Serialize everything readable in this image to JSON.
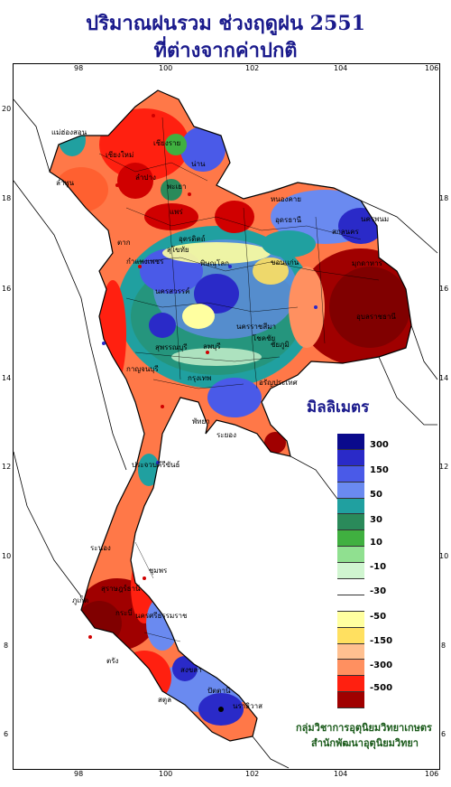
{
  "title": {
    "line1": "ปริมาณฝนรวม ช่วงฤดูฝน 2551",
    "line2": "ที่ต่างจากค่าปกติ"
  },
  "legend": {
    "title": "มิลลิเมตร",
    "labels": [
      "300",
      "150",
      "50",
      "30",
      "10",
      "-10",
      "-30",
      "-50",
      "-150",
      "-300",
      "-500"
    ],
    "colors": [
      "#0a0a8c",
      "#2a2ac8",
      "#4a5ae8",
      "#6a8af0",
      "#20a0a0",
      "#2a8a5a",
      "#40b040",
      "#90e090",
      "#d0f5d0",
      "#ffffff",
      "#ffffff",
      "#ffffa0",
      "#ffe060",
      "#ffc090",
      "#ff9060",
      "#ff6030",
      "#ff2010",
      "#d00000",
      "#a00000",
      "#800000"
    ]
  },
  "axes": {
    "top": [
      "98",
      "100",
      "102",
      "104",
      "106"
    ],
    "bottom": [
      "98",
      "100",
      "102",
      "104",
      "106"
    ],
    "left": [
      "20",
      "18",
      "16",
      "14",
      "12",
      "10",
      "8",
      "6"
    ],
    "right": [
      "18",
      "16",
      "14",
      "12",
      "10",
      "8",
      "6"
    ]
  },
  "places": [
    "แม่ฮ่องสอน",
    "เชียงใหม่",
    "ลำพูน",
    "เชียงราย",
    "พะเยา",
    "น่าน",
    "ลำปาง",
    "แพร่",
    "อุตรดิตถ์",
    "ตาก",
    "สุโขทัย",
    "กำแพงเพชร",
    "พิษณุโลก",
    "นครสวรรค์",
    "หนองคาย",
    "อุดรธานี",
    "สกลนคร",
    "นครพนม",
    "ขอนแก่น",
    "มุกดาหาร",
    "อุบลราชธานี",
    "นครราชสีมา",
    "โชคชัย",
    "ชัยภูมิ",
    "กาญจนบุรี",
    "สุพรรณบุรี",
    "ลพบุรี",
    "กรุงเทพ",
    "อรัญประเทศ",
    "พัทยา",
    "ระยอง",
    "ประจวบคีรีขันธ์",
    "ระนอง",
    "ชุมพร",
    "สุราษฎร์ธานี",
    "นครศรีธรรมราช",
    "ภูเก็ต",
    "กระบี่",
    "ตรัง",
    "สงขลา",
    "ปัตตานี",
    "นราธิวาส",
    "สตูล"
  ],
  "credit": {
    "line1": "กลุ่มวิชาการอุตุนิยมวิทยาเกษตร",
    "line2": "สำนักพัฒนาอุตุนิยมวิทยา"
  }
}
